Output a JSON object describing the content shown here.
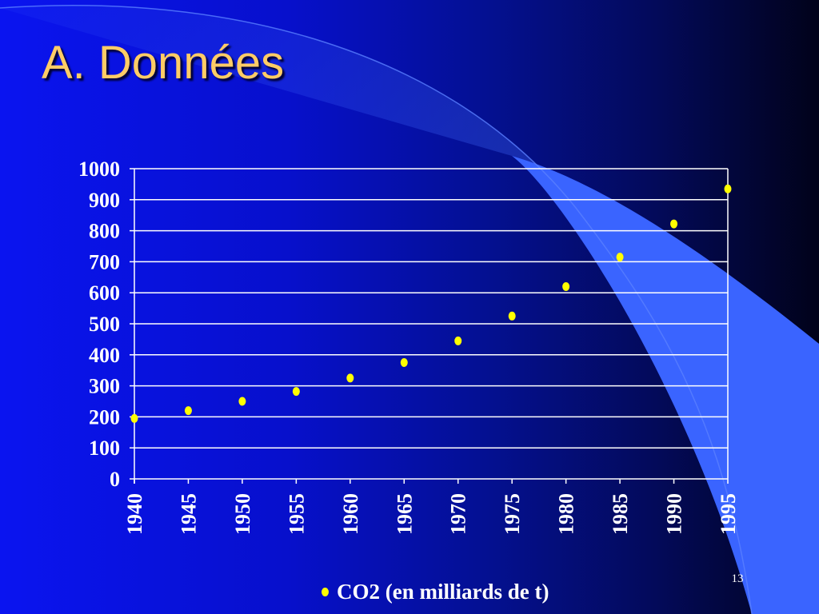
{
  "slide": {
    "title": "A. Données",
    "page_number": "13"
  },
  "colors": {
    "background": "#0a14f0",
    "title": "#ffcc66",
    "points": "#ffff00",
    "gridlines": "#ffffff",
    "swoosh": "#3a64ff"
  },
  "chart_data": {
    "type": "scatter",
    "title": "",
    "xlabel": "",
    "ylabel": "",
    "x_ticks": [
      "1940",
      "1945",
      "1950",
      "1955",
      "1960",
      "1965",
      "1970",
      "1975",
      "1980",
      "1985",
      "1990",
      "1995"
    ],
    "y_ticks": [
      "0",
      "100",
      "200",
      "300",
      "400",
      "500",
      "600",
      "700",
      "800",
      "900",
      "1000"
    ],
    "ylim": [
      0,
      1000
    ],
    "xlim": [
      1940,
      1995
    ],
    "grid": "horizontal",
    "legend_position": "bottom",
    "series": [
      {
        "name": "CO2 (en milliards de t)",
        "x": [
          1940,
          1945,
          1950,
          1955,
          1960,
          1965,
          1970,
          1975,
          1980,
          1985,
          1990,
          1995
        ],
        "y": [
          195,
          220,
          250,
          282,
          325,
          375,
          445,
          525,
          620,
          715,
          822,
          935
        ]
      }
    ]
  }
}
